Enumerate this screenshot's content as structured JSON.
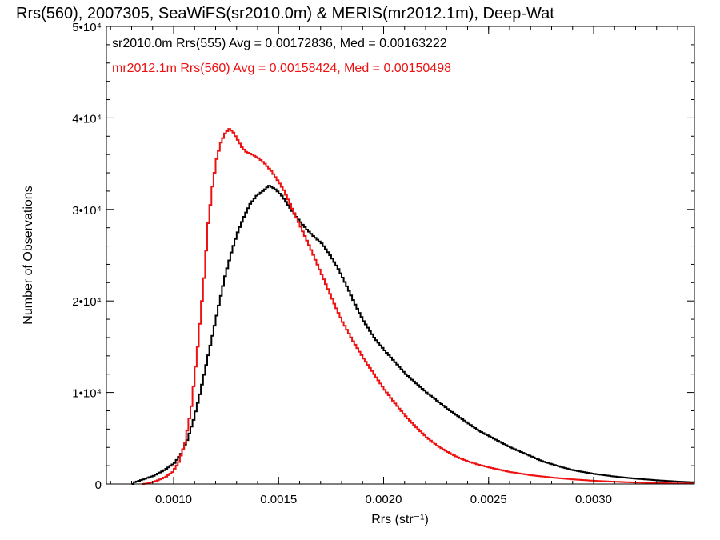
{
  "chart_data": {
    "type": "line",
    "title": "Rrs(560), 2007305, SeaWiFS(sr2010.0m) & MERIS(mr2012.1m), Deep-Wat",
    "xlabel": "Rrs (str⁻¹)",
    "ylabel": "Number of Observations",
    "xlim": [
      0.00068,
      0.00348
    ],
    "ylim": [
      0,
      50000
    ],
    "grid": false,
    "x_ticks": [
      {
        "value": 0.001,
        "label": "0.0010"
      },
      {
        "value": 0.0015,
        "label": "0.0015"
      },
      {
        "value": 0.002,
        "label": "0.0020"
      },
      {
        "value": 0.0025,
        "label": "0.0025"
      },
      {
        "value": 0.003,
        "label": "0.0030"
      }
    ],
    "y_ticks": [
      {
        "value": 0,
        "label": "0"
      },
      {
        "value": 10000,
        "label": "1•10⁴"
      },
      {
        "value": 20000,
        "label": "2•10⁴"
      },
      {
        "value": 30000,
        "label": "3•10⁴"
      },
      {
        "value": 40000,
        "label": "4•10⁴"
      },
      {
        "value": 50000,
        "label": "5•10⁴"
      }
    ],
    "annotations": [
      {
        "text": "sr2010.0m Rrs(555) Avg = 0.00172836, Med = 0.00163222",
        "color": "#000000"
      },
      {
        "text": "mr2012.1m Rrs(560) Avg = 0.00158424, Med = 0.00150498",
        "color": "#ee1111"
      }
    ],
    "series": [
      {
        "color": "#000000",
        "style": "step",
        "points": [
          [
            0.0008,
            0
          ],
          [
            0.00081,
            200
          ],
          [
            0.00085,
            500
          ],
          [
            0.0009,
            900
          ],
          [
            0.00095,
            1500
          ],
          [
            0.001,
            2300
          ],
          [
            0.00103,
            3300
          ],
          [
            0.00106,
            4800
          ],
          [
            0.00109,
            7000
          ],
          [
            0.00112,
            9800
          ],
          [
            0.00115,
            13000
          ],
          [
            0.00118,
            16200
          ],
          [
            0.00121,
            19500
          ],
          [
            0.00124,
            22700
          ],
          [
            0.00127,
            25300
          ],
          [
            0.0013,
            27500
          ],
          [
            0.00133,
            29200
          ],
          [
            0.00136,
            30600
          ],
          [
            0.00139,
            31500
          ],
          [
            0.00142,
            32000
          ],
          [
            0.00145,
            32600
          ],
          [
            0.00148,
            32200
          ],
          [
            0.00151,
            31500
          ],
          [
            0.00154,
            30500
          ],
          [
            0.00157,
            29500
          ],
          [
            0.0016,
            28600
          ],
          [
            0.00163,
            27800
          ],
          [
            0.00166,
            27100
          ],
          [
            0.0017,
            26300
          ],
          [
            0.00174,
            25000
          ],
          [
            0.00178,
            23500
          ],
          [
            0.00182,
            21600
          ],
          [
            0.00186,
            19600
          ],
          [
            0.0019,
            17800
          ],
          [
            0.00195,
            16000
          ],
          [
            0.002,
            14600
          ],
          [
            0.00205,
            13300
          ],
          [
            0.0021,
            12000
          ],
          [
            0.00215,
            11000
          ],
          [
            0.0022,
            10000
          ],
          [
            0.00225,
            9100
          ],
          [
            0.0023,
            8200
          ],
          [
            0.00235,
            7400
          ],
          [
            0.0024,
            6600
          ],
          [
            0.00245,
            5800
          ],
          [
            0.0025,
            5200
          ],
          [
            0.00255,
            4600
          ],
          [
            0.0026,
            4000
          ],
          [
            0.00265,
            3500
          ],
          [
            0.0027,
            3000
          ],
          [
            0.00275,
            2500
          ],
          [
            0.0028,
            2150
          ],
          [
            0.00285,
            1800
          ],
          [
            0.0029,
            1500
          ],
          [
            0.003,
            1100
          ],
          [
            0.0031,
            800
          ],
          [
            0.0032,
            580
          ],
          [
            0.0033,
            400
          ],
          [
            0.0034,
            260
          ],
          [
            0.00348,
            180
          ]
        ]
      },
      {
        "color": "#ee1111",
        "style": "step",
        "points": [
          [
            0.00085,
            0
          ],
          [
            0.00088,
            100
          ],
          [
            0.00092,
            400
          ],
          [
            0.00096,
            800
          ],
          [
            0.00099,
            1300
          ],
          [
            0.00102,
            2400
          ],
          [
            0.00105,
            4500
          ],
          [
            0.00108,
            8500
          ],
          [
            0.00111,
            15000
          ],
          [
            0.00114,
            22500
          ],
          [
            0.00116,
            28500
          ],
          [
            0.00118,
            32500
          ],
          [
            0.0012,
            35500
          ],
          [
            0.00122,
            37300
          ],
          [
            0.00124,
            38300
          ],
          [
            0.00126,
            38800
          ],
          [
            0.00128,
            38400
          ],
          [
            0.0013,
            37600
          ],
          [
            0.00132,
            36800
          ],
          [
            0.00134,
            36300
          ],
          [
            0.00137,
            36000
          ],
          [
            0.0014,
            35600
          ],
          [
            0.00143,
            35000
          ],
          [
            0.00146,
            34200
          ],
          [
            0.00149,
            33200
          ],
          [
            0.00152,
            32100
          ],
          [
            0.00155,
            30600
          ],
          [
            0.00158,
            29100
          ],
          [
            0.00161,
            27600
          ],
          [
            0.00164,
            26100
          ],
          [
            0.00167,
            24500
          ],
          [
            0.0017,
            22900
          ],
          [
            0.00173,
            21300
          ],
          [
            0.00176,
            19700
          ],
          [
            0.0018,
            17700
          ],
          [
            0.00185,
            15600
          ],
          [
            0.0019,
            13700
          ],
          [
            0.00195,
            12000
          ],
          [
            0.002,
            10300
          ],
          [
            0.00205,
            8800
          ],
          [
            0.0021,
            7400
          ],
          [
            0.00215,
            6200
          ],
          [
            0.0022,
            5100
          ],
          [
            0.00225,
            4200
          ],
          [
            0.0023,
            3500
          ],
          [
            0.00235,
            2900
          ],
          [
            0.0024,
            2450
          ],
          [
            0.00245,
            2100
          ],
          [
            0.0025,
            1800
          ],
          [
            0.00255,
            1550
          ],
          [
            0.0026,
            1300
          ],
          [
            0.0027,
            950
          ],
          [
            0.0028,
            700
          ],
          [
            0.0029,
            500
          ],
          [
            0.003,
            350
          ],
          [
            0.0031,
            240
          ],
          [
            0.0032,
            160
          ],
          [
            0.0033,
            100
          ],
          [
            0.0034,
            60
          ],
          [
            0.00348,
            40
          ]
        ]
      }
    ]
  }
}
